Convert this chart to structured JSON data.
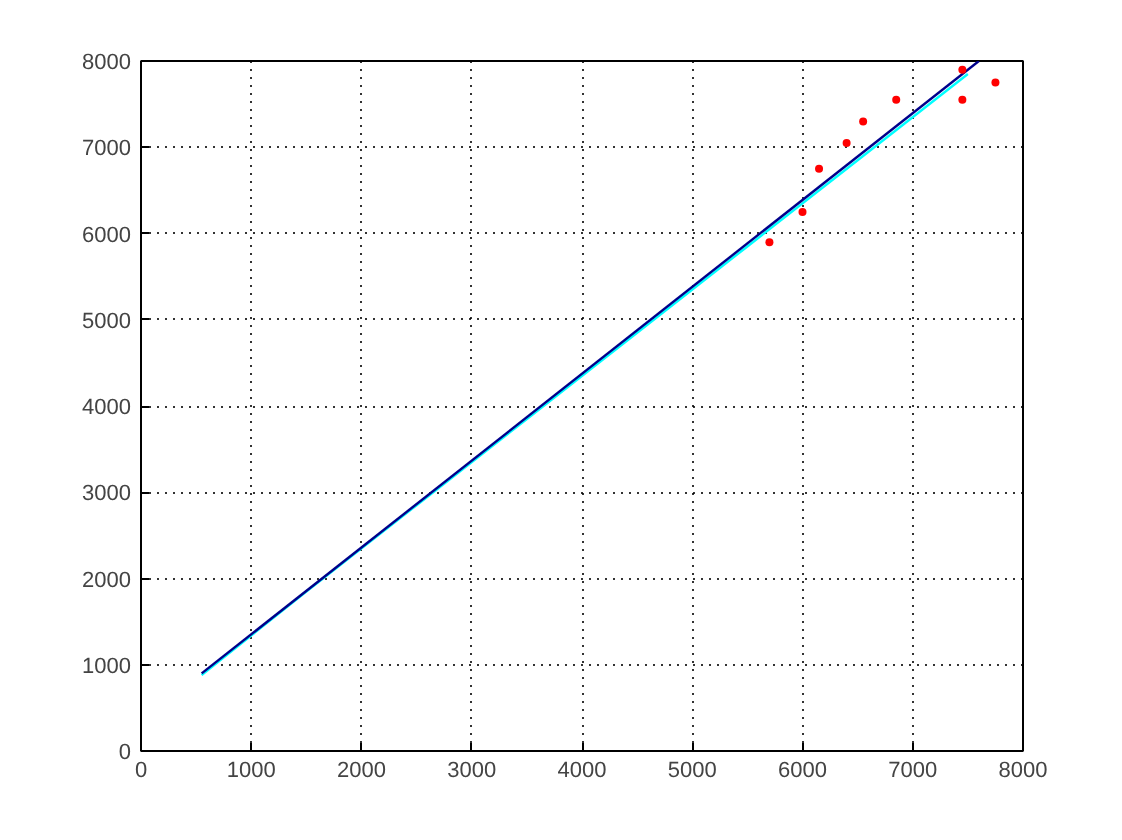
{
  "chart_data": {
    "type": "line",
    "xlim": [
      0,
      8000
    ],
    "ylim": [
      0,
      8000
    ],
    "xticks": [
      0,
      1000,
      2000,
      3000,
      4000,
      5000,
      6000,
      7000,
      8000
    ],
    "yticks": [
      0,
      1000,
      2000,
      3000,
      4000,
      5000,
      6000,
      7000,
      8000
    ],
    "grid": true,
    "line_style": "solid",
    "series": [
      {
        "color": "#00ffff",
        "x": [
          550,
          1500,
          2500,
          3500,
          4500,
          5500,
          6500,
          7500
        ],
        "values": [
          880,
          1850,
          2850,
          3850,
          4850,
          5850,
          6850,
          7850
        ]
      },
      {
        "color": "#00008b",
        "x": [
          550,
          7600
        ],
        "values": [
          900,
          8000
        ]
      },
      {
        "type": "scatter",
        "marker": "circle",
        "color": "#ff0000",
        "x": [
          5700,
          6000,
          6150,
          6400,
          6550,
          6850,
          7450,
          7450,
          7750
        ],
        "values": [
          5900,
          6250,
          6750,
          7050,
          7300,
          7550,
          7550,
          7900,
          7750
        ]
      }
    ]
  }
}
